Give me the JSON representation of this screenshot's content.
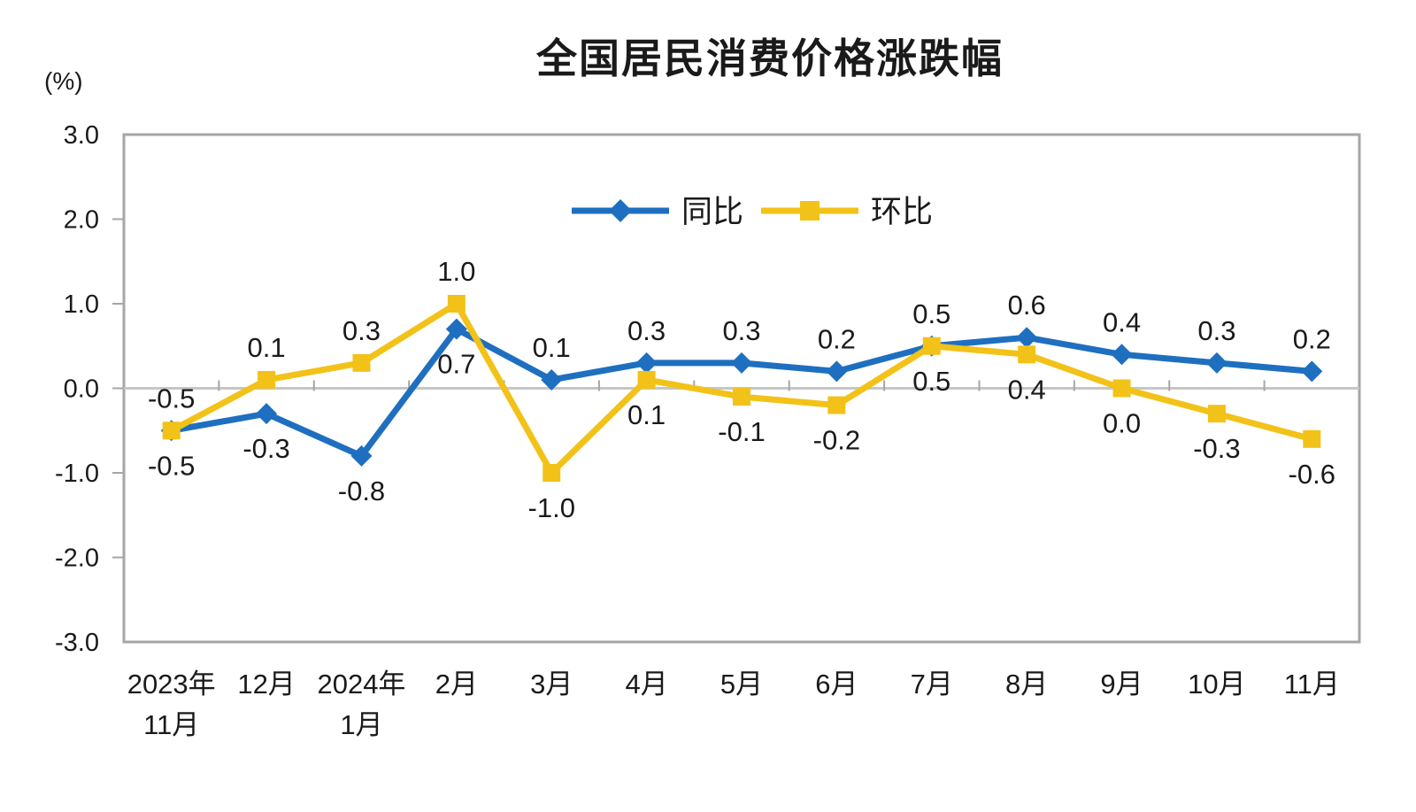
{
  "chart": {
    "title": "全国居民消费价格涨跌幅",
    "unit_label": "(%)",
    "colors": {
      "yoy": "#1E6FC0",
      "mom": "#F2C219",
      "border": "#A6A6A6",
      "zero_line": "#C6C6C6",
      "text": "#1a1a1a"
    }
  },
  "chart_data": {
    "type": "line",
    "title": "全国居民消费价格涨跌幅",
    "ylabel": "(%)",
    "xlabel": "",
    "categories": [
      "2023年\n11月",
      "12月",
      "2024年\n1月",
      "2月",
      "3月",
      "4月",
      "5月",
      "6月",
      "7月",
      "8月",
      "9月",
      "10月",
      "11月"
    ],
    "series": [
      {
        "key": "yoy",
        "name": "同比",
        "color": "#1E6FC0",
        "marker": "diamond",
        "values": [
          -0.5,
          -0.3,
          -0.8,
          0.7,
          0.1,
          0.3,
          0.3,
          0.2,
          0.5,
          0.6,
          0.4,
          0.3,
          0.2
        ]
      },
      {
        "key": "mom",
        "name": "环比",
        "color": "#F2C219",
        "marker": "square",
        "values": [
          -0.5,
          0.1,
          0.3,
          1.0,
          -1.0,
          0.1,
          -0.1,
          -0.2,
          0.5,
          0.4,
          0.0,
          -0.3,
          -0.6
        ]
      }
    ],
    "ylim": [
      -3.0,
      3.0
    ],
    "yticks": [
      3.0,
      2.0,
      1.0,
      0.0,
      -1.0,
      -2.0,
      -3.0
    ],
    "grid": false,
    "legend_position": "top-center-inside",
    "data_labels": true
  }
}
